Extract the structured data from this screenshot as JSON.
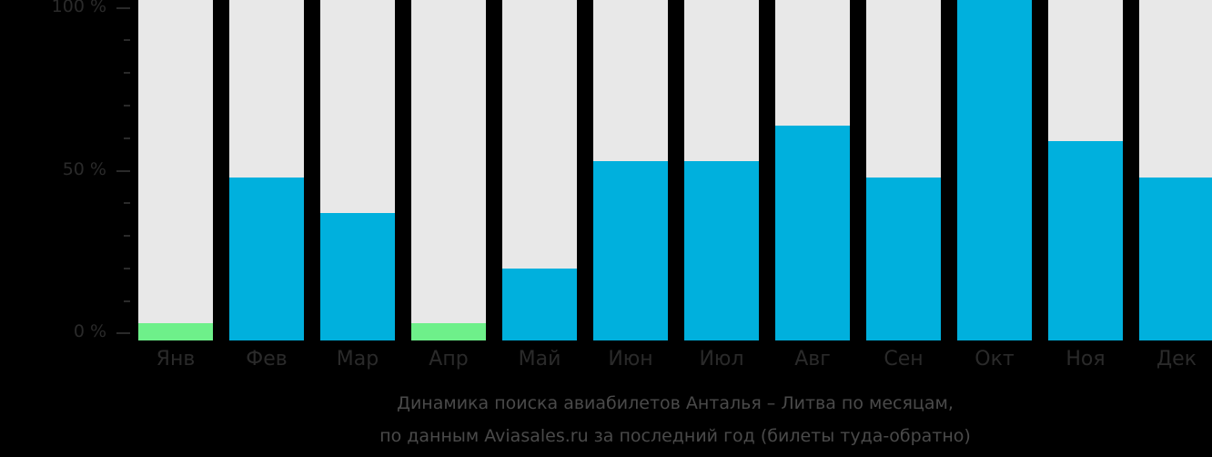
{
  "chart_data": {
    "type": "bar",
    "title": "Динамика поиска авиабилетов Анталья – Литва по месяцам,",
    "subtitle": "по данным Aviasales.ru за последний год (билеты туда-обратно)",
    "xlabel": "",
    "ylabel": "",
    "ylim": [
      0,
      100
    ],
    "yticks": [
      "0 %",
      "50 %",
      "100 %"
    ],
    "categories": [
      "Янв",
      "Фев",
      "Мар",
      "Апр",
      "Май",
      "Июн",
      "Июл",
      "Авг",
      "Сен",
      "Окт",
      "Ноя",
      "Дек"
    ],
    "values": [
      3,
      48,
      37,
      3,
      20,
      53,
      53,
      64,
      48,
      100,
      59,
      48
    ],
    "colors": [
      "#6ef08a",
      "#00b0dd",
      "#00b0dd",
      "#6ef08a",
      "#00b0dd",
      "#00b0dd",
      "#00b0dd",
      "#00b0dd",
      "#00b0dd",
      "#00b0dd",
      "#00b0dd",
      "#00b0dd"
    ],
    "background_bar_color": "#e8e8e8",
    "grid": false,
    "legend": null
  },
  "axis": {
    "y_labels": [
      "100 %",
      "50 %",
      "0 %"
    ]
  },
  "caption": {
    "line1": "Динамика поиска авиабилетов Анталья – Литва по месяцам,",
    "line2": "по данным Aviasales.ru за последний год (билеты туда-обратно)"
  }
}
